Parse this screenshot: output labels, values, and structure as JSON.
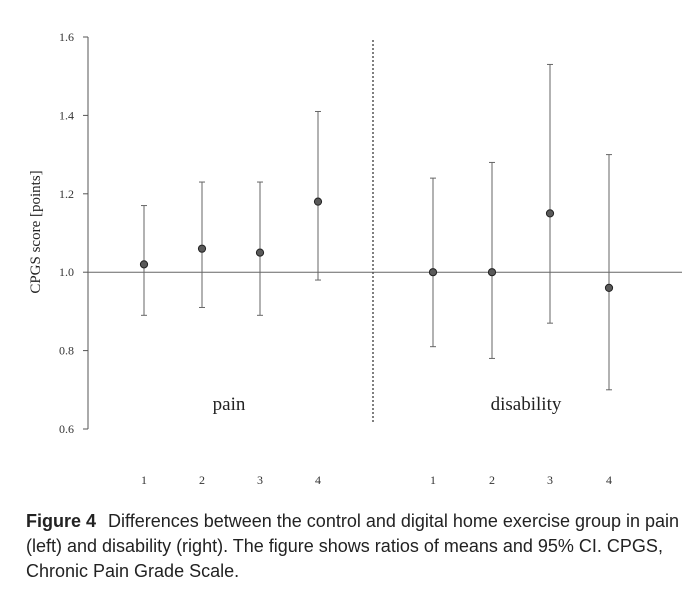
{
  "chart_data": {
    "type": "scatter",
    "ylabel": "CPGS score [points]",
    "ylim": [
      0.6,
      1.6
    ],
    "yticks": [
      "0.6",
      "0.8",
      "1.0",
      "1.2",
      "1.4",
      "1.6"
    ],
    "reference_line": 1.0,
    "grid": false,
    "groups": [
      {
        "label": "pain",
        "categories": [
          "1",
          "2",
          "3",
          "4"
        ],
        "values": [
          1.02,
          1.06,
          1.05,
          1.18
        ],
        "ci_lower": [
          0.89,
          0.91,
          0.89,
          0.98
        ],
        "ci_upper": [
          1.17,
          1.23,
          1.23,
          1.41
        ]
      },
      {
        "label": "disability",
        "categories": [
          "1",
          "2",
          "3",
          "4"
        ],
        "values": [
          1.0,
          1.0,
          1.15,
          0.96
        ],
        "ci_lower": [
          0.81,
          0.78,
          0.87,
          0.7
        ],
        "ci_upper": [
          1.24,
          1.28,
          1.53,
          1.3
        ]
      }
    ]
  },
  "caption": {
    "label": "Figure 4",
    "text": "Differences between the control and digital home exercise group in pain (left) and disability (right). The figure shows ratios of means and 95% CI. CPGS, Chronic Pain Grade Scale."
  }
}
